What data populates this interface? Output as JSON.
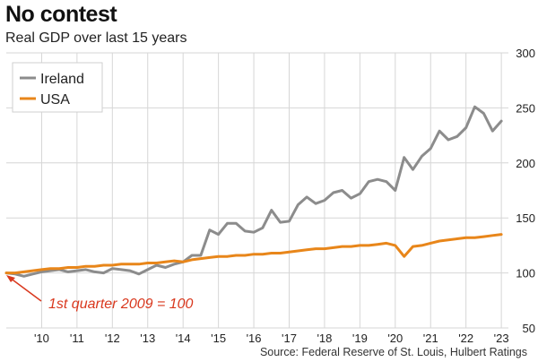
{
  "chart_data": {
    "type": "line",
    "title": "No contest",
    "subtitle": "Real GDP over last 15 years",
    "source": "Source: Federal Reserve of St. Louis, Hulbert Ratings",
    "annotation": "1st quarter 2009 = 100",
    "xlabel": "",
    "ylabel": "",
    "ylim": [
      50,
      300
    ],
    "yticks": [
      50,
      100,
      150,
      200,
      250,
      300
    ],
    "x_tick_labels": [
      "'10",
      "'11",
      "'12",
      "'13",
      "'14",
      "'15",
      "'16",
      "'17",
      "'18",
      "'19",
      "'20",
      "'21",
      "'22",
      "'23"
    ],
    "x_tick_years": [
      2010,
      2011,
      2012,
      2013,
      2014,
      2015,
      2016,
      2017,
      2018,
      2019,
      2020,
      2021,
      2022,
      2023
    ],
    "xlim": [
      2009.0,
      2023.2
    ],
    "grid": true,
    "legend_position": "top-left",
    "colors": {
      "ireland": "#8c8c8c",
      "usa": "#e8861a",
      "annotation": "#d9381e"
    },
    "series": [
      {
        "name": "Ireland",
        "color": "#8c8c8c",
        "x": [
          2009.0,
          2009.25,
          2009.5,
          2009.75,
          2010.0,
          2010.25,
          2010.5,
          2010.75,
          2011.0,
          2011.25,
          2011.5,
          2011.75,
          2012.0,
          2012.25,
          2012.5,
          2012.75,
          2013.0,
          2013.25,
          2013.5,
          2013.75,
          2014.0,
          2014.25,
          2014.5,
          2014.75,
          2015.0,
          2015.25,
          2015.5,
          2015.75,
          2016.0,
          2016.25,
          2016.5,
          2016.75,
          2017.0,
          2017.25,
          2017.5,
          2017.75,
          2018.0,
          2018.25,
          2018.5,
          2018.75,
          2019.0,
          2019.25,
          2019.5,
          2019.75,
          2020.0,
          2020.25,
          2020.5,
          2020.75,
          2021.0,
          2021.25,
          2021.5,
          2021.75,
          2022.0,
          2022.25,
          2022.5,
          2022.75,
          2023.0
        ],
        "values": [
          100,
          99,
          97,
          99,
          101,
          102,
          103,
          101,
          102,
          103,
          101,
          100,
          104,
          103,
          102,
          99,
          103,
          107,
          105,
          108,
          110,
          116,
          116,
          139,
          135,
          145,
          145,
          138,
          137,
          141,
          157,
          146,
          147,
          162,
          169,
          163,
          166,
          173,
          175,
          168,
          172,
          183,
          185,
          183,
          175,
          205,
          194,
          206,
          213,
          229,
          221,
          224,
          232,
          251,
          245,
          229,
          238
        ]
      },
      {
        "name": "USA",
        "color": "#e8861a",
        "x": [
          2009.0,
          2009.25,
          2009.5,
          2009.75,
          2010.0,
          2010.25,
          2010.5,
          2010.75,
          2011.0,
          2011.25,
          2011.5,
          2011.75,
          2012.0,
          2012.25,
          2012.5,
          2012.75,
          2013.0,
          2013.25,
          2013.5,
          2013.75,
          2014.0,
          2014.25,
          2014.5,
          2014.75,
          2015.0,
          2015.25,
          2015.5,
          2015.75,
          2016.0,
          2016.25,
          2016.5,
          2016.75,
          2017.0,
          2017.25,
          2017.5,
          2017.75,
          2018.0,
          2018.25,
          2018.5,
          2018.75,
          2019.0,
          2019.25,
          2019.5,
          2019.75,
          2020.0,
          2020.25,
          2020.5,
          2020.75,
          2021.0,
          2021.25,
          2021.5,
          2021.75,
          2022.0,
          2022.25,
          2022.5,
          2022.75,
          2023.0
        ],
        "values": [
          100,
          100,
          101,
          102,
          103,
          104,
          104,
          105,
          105,
          106,
          106,
          107,
          107,
          108,
          108,
          108,
          109,
          109,
          110,
          111,
          110,
          112,
          113,
          114,
          115,
          115,
          116,
          116,
          117,
          117,
          118,
          118,
          119,
          120,
          121,
          122,
          122,
          123,
          124,
          124,
          125,
          125,
          126,
          127,
          125,
          115,
          124,
          125,
          127,
          129,
          130,
          131,
          132,
          132,
          133,
          134,
          135
        ]
      }
    ]
  }
}
